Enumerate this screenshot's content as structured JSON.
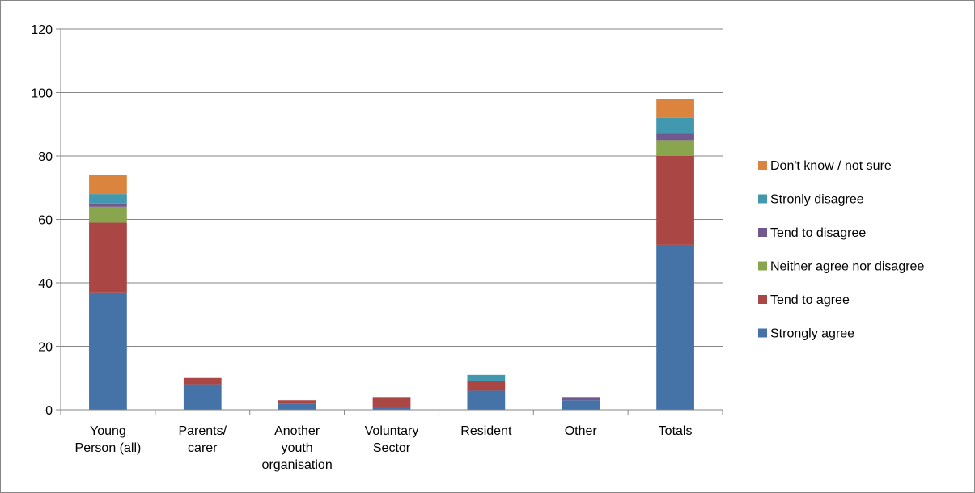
{
  "chart_data": {
    "type": "bar",
    "stacked": true,
    "title": "",
    "xlabel": "",
    "ylabel": "",
    "ylim": [
      0,
      120
    ],
    "yticks": [
      0,
      20,
      40,
      60,
      80,
      100,
      120
    ],
    "grid": true,
    "legend_position": "right",
    "categories": [
      "Young Person (all)",
      "Parents/ carer",
      "Another youth organisation",
      "Voluntary Sector",
      "Resident",
      "Other",
      "Totals"
    ],
    "category_label_lines": [
      [
        "Young",
        "Person (all)"
      ],
      [
        "Parents/",
        "carer"
      ],
      [
        "Another",
        "youth",
        "organisation"
      ],
      [
        "Voluntary",
        "Sector"
      ],
      [
        "Resident"
      ],
      [
        "Other"
      ],
      [
        "Totals"
      ]
    ],
    "series": [
      {
        "name": "Strongly agree",
        "color": "#4572A7",
        "values": [
          37,
          8,
          2,
          1,
          6,
          3,
          52
        ]
      },
      {
        "name": "Tend to agree",
        "color": "#AA4643",
        "values": [
          22,
          2,
          1,
          3,
          3,
          0,
          28
        ]
      },
      {
        "name": "Neither agree nor disagree",
        "color": "#89A54E",
        "values": [
          5,
          0,
          0,
          0,
          0,
          0,
          5
        ]
      },
      {
        "name": "Tend to disagree",
        "color": "#71588F",
        "values": [
          1,
          0,
          0,
          0,
          0,
          1,
          2
        ]
      },
      {
        "name": "Stronly disagree",
        "color": "#4198AF",
        "values": [
          3,
          0,
          0,
          0,
          2,
          0,
          5
        ]
      },
      {
        "name": "Don't know / not sure",
        "color": "#DB843D",
        "values": [
          6,
          0,
          0,
          0,
          0,
          0,
          6
        ]
      }
    ]
  }
}
